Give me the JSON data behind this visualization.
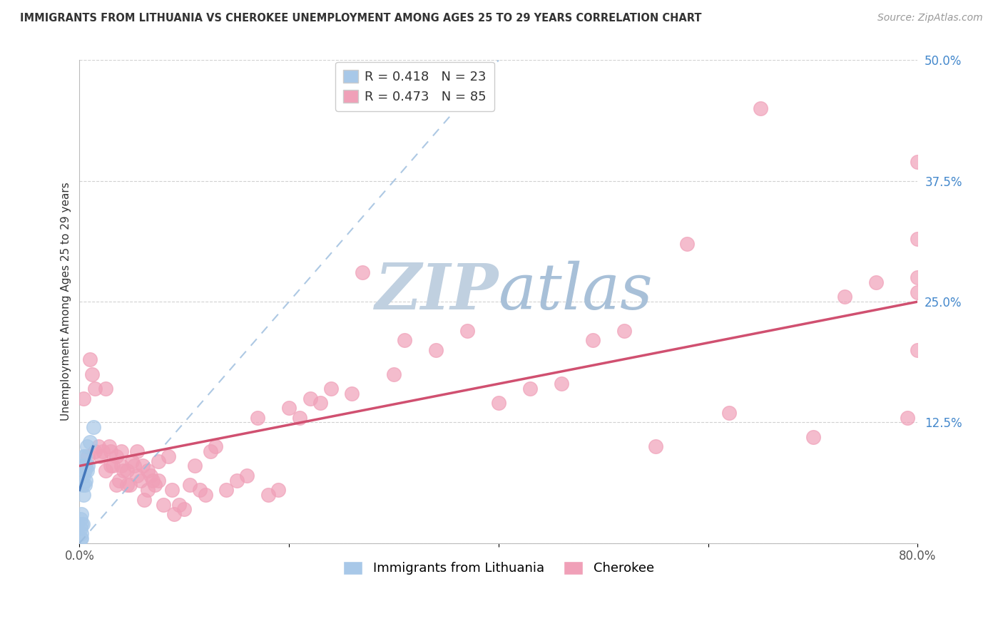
{
  "title": "IMMIGRANTS FROM LITHUANIA VS CHEROKEE UNEMPLOYMENT AMONG AGES 25 TO 29 YEARS CORRELATION CHART",
  "source": "Source: ZipAtlas.com",
  "ylabel": "Unemployment Among Ages 25 to 29 years",
  "xlim": [
    0.0,
    0.8
  ],
  "ylim": [
    0.0,
    0.5
  ],
  "xticks": [
    0.0,
    0.2,
    0.4,
    0.6,
    0.8
  ],
  "yticks": [
    0.0,
    0.125,
    0.25,
    0.375,
    0.5
  ],
  "legend_r1": "R = 0.418",
  "legend_n1": "N = 23",
  "legend_r2": "R = 0.473",
  "legend_n2": "N = 85",
  "lithuania_color": "#a8c8e8",
  "cherokee_color": "#f0a0b8",
  "trendline_lithuania_dashed_color": "#99bbdd",
  "trendline_lithuania_solid_color": "#4477bb",
  "trendline_cherokee_color": "#d05070",
  "grid_color": "#cccccc",
  "watermark_zip_color": "#c0d0e0",
  "watermark_atlas_color": "#a8c0d8",
  "lithuania_x": [
    0.001,
    0.001,
    0.001,
    0.002,
    0.002,
    0.002,
    0.002,
    0.003,
    0.003,
    0.003,
    0.004,
    0.004,
    0.004,
    0.005,
    0.005,
    0.005,
    0.006,
    0.006,
    0.007,
    0.007,
    0.008,
    0.01,
    0.013
  ],
  "lithuania_y": [
    0.005,
    0.015,
    0.025,
    0.005,
    0.01,
    0.02,
    0.03,
    0.02,
    0.06,
    0.08,
    0.05,
    0.07,
    0.09,
    0.06,
    0.075,
    0.09,
    0.065,
    0.08,
    0.075,
    0.1,
    0.08,
    0.105,
    0.12
  ],
  "cherokee_x": [
    0.004,
    0.008,
    0.01,
    0.012,
    0.015,
    0.015,
    0.018,
    0.02,
    0.022,
    0.025,
    0.025,
    0.028,
    0.03,
    0.03,
    0.032,
    0.035,
    0.035,
    0.038,
    0.04,
    0.04,
    0.042,
    0.045,
    0.045,
    0.048,
    0.05,
    0.052,
    0.055,
    0.055,
    0.058,
    0.06,
    0.062,
    0.065,
    0.065,
    0.068,
    0.07,
    0.072,
    0.075,
    0.075,
    0.08,
    0.085,
    0.088,
    0.09,
    0.095,
    0.1,
    0.105,
    0.11,
    0.115,
    0.12,
    0.125,
    0.13,
    0.14,
    0.15,
    0.16,
    0.17,
    0.18,
    0.19,
    0.2,
    0.21,
    0.22,
    0.23,
    0.24,
    0.26,
    0.27,
    0.3,
    0.31,
    0.34,
    0.37,
    0.4,
    0.43,
    0.46,
    0.49,
    0.52,
    0.55,
    0.58,
    0.62,
    0.65,
    0.7,
    0.73,
    0.76,
    0.79,
    0.8,
    0.8,
    0.8,
    0.8,
    0.8
  ],
  "cherokee_y": [
    0.15,
    0.09,
    0.19,
    0.175,
    0.095,
    0.16,
    0.1,
    0.09,
    0.095,
    0.16,
    0.075,
    0.1,
    0.095,
    0.08,
    0.08,
    0.09,
    0.06,
    0.065,
    0.08,
    0.095,
    0.075,
    0.075,
    0.06,
    0.06,
    0.085,
    0.08,
    0.095,
    0.07,
    0.065,
    0.08,
    0.045,
    0.055,
    0.075,
    0.07,
    0.065,
    0.06,
    0.085,
    0.065,
    0.04,
    0.09,
    0.055,
    0.03,
    0.04,
    0.035,
    0.06,
    0.08,
    0.055,
    0.05,
    0.095,
    0.1,
    0.055,
    0.065,
    0.07,
    0.13,
    0.05,
    0.055,
    0.14,
    0.13,
    0.15,
    0.145,
    0.16,
    0.155,
    0.28,
    0.175,
    0.21,
    0.2,
    0.22,
    0.145,
    0.16,
    0.165,
    0.21,
    0.22,
    0.1,
    0.31,
    0.135,
    0.45,
    0.11,
    0.255,
    0.27,
    0.13,
    0.2,
    0.395,
    0.315,
    0.26,
    0.275
  ],
  "cherokee_trendline_x0": 0.0,
  "cherokee_trendline_y0": 0.08,
  "cherokee_trendline_x1": 0.8,
  "cherokee_trendline_y1": 0.25,
  "lithuania_trendline_dashed_x0": 0.0,
  "lithuania_trendline_dashed_y0": 0.0,
  "lithuania_trendline_dashed_x1": 0.4,
  "lithuania_trendline_dashed_y1": 0.5,
  "lithuania_trendline_solid_x0": 0.0,
  "lithuania_trendline_solid_y0": 0.055,
  "lithuania_trendline_solid_x1": 0.013,
  "lithuania_trendline_solid_y1": 0.1
}
